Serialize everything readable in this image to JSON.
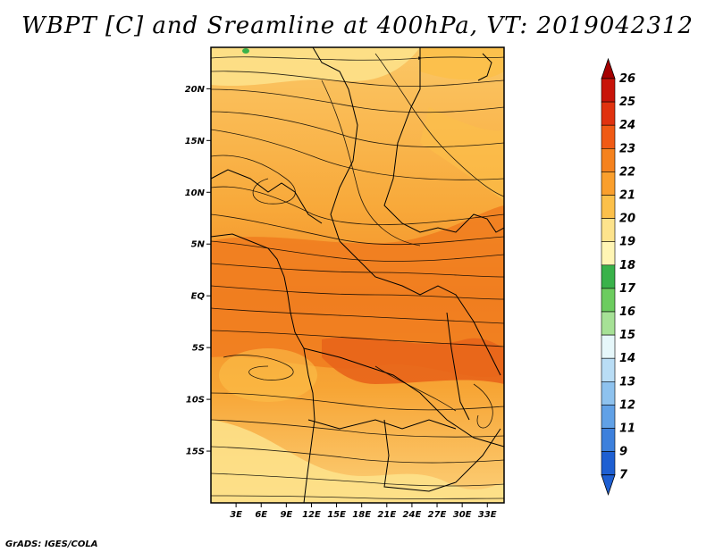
{
  "title": "WBPT [C] and Sreamline at 400hPa, VT: 2019042312",
  "credit": "GrADS: IGES/COLA",
  "map": {
    "lon_range": [
      0,
      35
    ],
    "lat_range": [
      -20,
      24
    ],
    "lon_labels": [
      "3E",
      "6E",
      "9E",
      "12E",
      "15E",
      "18E",
      "21E",
      "24E",
      "27E",
      "30E",
      "33E"
    ],
    "lon_values": [
      3,
      6,
      9,
      12,
      15,
      18,
      21,
      24,
      27,
      30,
      33
    ],
    "lat_labels": [
      "20N",
      "15N",
      "10N",
      "5N",
      "EQ",
      "5S",
      "10S",
      "15S"
    ],
    "lat_values": [
      20,
      15,
      10,
      5,
      0,
      -5,
      -10,
      -15
    ]
  },
  "colorbar": {
    "labels": [
      "26",
      "25",
      "24",
      "23",
      "22",
      "21",
      "20",
      "19",
      "18",
      "17",
      "16",
      "15",
      "14",
      "13",
      "12",
      "11",
      "9",
      "7"
    ],
    "colors": [
      "#a50000",
      "#c8140a",
      "#e0320f",
      "#f05a14",
      "#f5821e",
      "#fa9f2d",
      "#fcc04a",
      "#fde38c",
      "#fff5b4",
      "#39b24a",
      "#6ccc5f",
      "#a6e196",
      "#e6f7fa",
      "#b9ddf5",
      "#8ec2ee",
      "#61a1e6",
      "#3d80dc",
      "#1e5fd2"
    ]
  }
}
